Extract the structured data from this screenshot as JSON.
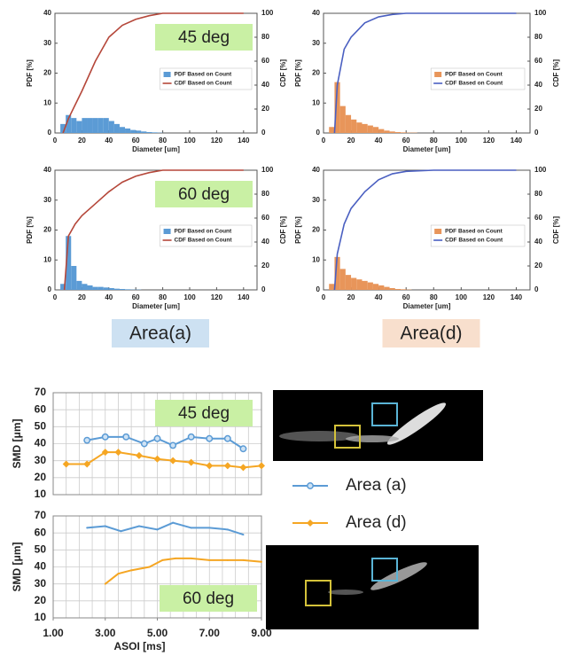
{
  "chart_data": [
    {
      "type": "histogram",
      "annotation": "45 deg",
      "xlabel": "Diameter [um]",
      "ylabel": "PDF [%]",
      "y2label": "CDF [%]",
      "bins": [
        4,
        8,
        12,
        16,
        20,
        24,
        28,
        32,
        36,
        40,
        44,
        48,
        52,
        56,
        60,
        64,
        68,
        72,
        76,
        80,
        84
      ],
      "series": [
        {
          "name": "PDF Based on Count",
          "color": "#5b9bd5",
          "values": [
            3,
            6,
            5,
            4,
            5,
            5,
            5,
            5,
            5,
            4,
            3,
            2,
            1.5,
            1,
            0.8,
            0.5,
            0.3,
            0.2,
            0.1,
            0
          ]
        },
        {
          "name": "CDF Based on Count",
          "color": "#b5473a",
          "axis": "y2",
          "x": [
            6,
            10,
            20,
            30,
            40,
            50,
            60,
            70,
            80,
            90,
            100,
            140
          ],
          "values": [
            0,
            12,
            35,
            60,
            80,
            90,
            95,
            98,
            100,
            100,
            100,
            100
          ]
        }
      ],
      "xlim": [
        0,
        150
      ],
      "xticks": [
        0,
        20,
        40,
        60,
        80,
        100,
        120,
        140
      ],
      "ylim": [
        0,
        40
      ],
      "yticks": [
        0,
        10,
        20,
        30,
        40
      ],
      "y2lim": [
        0,
        100
      ],
      "y2ticks": [
        0,
        20,
        40,
        60,
        80,
        100
      ]
    },
    {
      "type": "histogram",
      "xlabel": "Diameter [um]",
      "ylabel": "PDF [%]",
      "y2label": "CDF [%]",
      "bins": [
        4,
        8,
        12,
        16,
        20,
        24,
        28,
        32,
        36,
        40,
        44,
        48,
        52,
        56,
        60,
        64,
        68,
        72,
        76,
        80,
        84
      ],
      "series": [
        {
          "name": "PDF Based on Count",
          "color": "#e8955a",
          "values": [
            2,
            17,
            9,
            6,
            4.5,
            3.5,
            3,
            2.5,
            2,
            1.3,
            0.8,
            0.5,
            0.3,
            0.2,
            0.1,
            0.1,
            0,
            0,
            0,
            0
          ]
        },
        {
          "name": "CDF Based on Count",
          "color": "#4a5fc1",
          "axis": "y2",
          "x": [
            8,
            10,
            15,
            20,
            30,
            40,
            50,
            60,
            80,
            140
          ],
          "values": [
            0,
            40,
            70,
            80,
            92,
            97,
            99,
            100,
            100,
            100
          ]
        }
      ],
      "xlim": [
        0,
        150
      ],
      "xticks": [
        0,
        20,
        40,
        60,
        80,
        100,
        120,
        140
      ],
      "ylim": [
        0,
        40
      ],
      "yticks": [
        0,
        10,
        20,
        30,
        40
      ],
      "y2lim": [
        0,
        100
      ],
      "y2ticks": [
        0,
        20,
        40,
        60,
        80,
        100
      ]
    },
    {
      "type": "histogram",
      "annotation": "60 deg",
      "caption": "Area(a)",
      "xlabel": "Diameter [um]",
      "ylabel": "PDF [%]",
      "y2label": "CDF [%]",
      "bins": [
        4,
        8,
        12,
        16,
        20,
        24,
        28,
        32,
        36,
        40,
        44,
        48,
        52,
        56,
        60,
        64,
        68,
        72,
        76,
        80,
        84
      ],
      "series": [
        {
          "name": "PDF Based on Count",
          "color": "#5b9bd5",
          "values": [
            2,
            18,
            8,
            3,
            2,
            1.5,
            1,
            1,
            0.8,
            0.6,
            0.4,
            0.3,
            0.2,
            0.1,
            0.1,
            0,
            0,
            0,
            0,
            0
          ]
        },
        {
          "name": "CDF Based on Count",
          "color": "#b5473a",
          "axis": "y2",
          "x": [
            7,
            10,
            15,
            20,
            30,
            40,
            50,
            60,
            70,
            80,
            100,
            140
          ],
          "values": [
            0,
            45,
            55,
            62,
            72,
            82,
            90,
            95,
            98,
            100,
            100,
            100
          ]
        }
      ],
      "xlim": [
        0,
        150
      ],
      "xticks": [
        0,
        20,
        40,
        60,
        80,
        100,
        120,
        140
      ],
      "ylim": [
        0,
        40
      ],
      "yticks": [
        0,
        10,
        20,
        30,
        40
      ],
      "y2lim": [
        0,
        100
      ],
      "y2ticks": [
        0,
        20,
        40,
        60,
        80,
        100
      ]
    },
    {
      "type": "histogram",
      "caption": "Area(d)",
      "xlabel": "Diameter [um]",
      "ylabel": "PDF [%]",
      "y2label": "CDF [%]",
      "bins": [
        4,
        8,
        12,
        16,
        20,
        24,
        28,
        32,
        36,
        40,
        44,
        48,
        52,
        56,
        60,
        64,
        68,
        72,
        76,
        80,
        84
      ],
      "series": [
        {
          "name": "PDF Based on Count",
          "color": "#e8955a",
          "values": [
            2,
            11,
            7,
            5,
            4,
            3.5,
            3,
            2.5,
            2,
            1.5,
            1,
            0.6,
            0.3,
            0.2,
            0.1,
            0,
            0,
            0,
            0,
            0
          ]
        },
        {
          "name": "CDF Based on Count",
          "color": "#4a5fc1",
          "axis": "y2",
          "x": [
            8,
            10,
            15,
            20,
            30,
            40,
            50,
            60,
            80,
            140
          ],
          "values": [
            0,
            30,
            55,
            68,
            82,
            92,
            97,
            99,
            100,
            100
          ]
        }
      ],
      "xlim": [
        0,
        150
      ],
      "xticks": [
        0,
        20,
        40,
        60,
        80,
        100,
        120,
        140
      ],
      "ylim": [
        0,
        40
      ],
      "yticks": [
        0,
        10,
        20,
        30,
        40
      ],
      "y2lim": [
        0,
        100
      ],
      "y2ticks": [
        0,
        20,
        40,
        60,
        80,
        100
      ]
    },
    {
      "type": "line",
      "annotation": "45 deg",
      "ylabel": "SMD [μm]",
      "series": [
        {
          "name": "Area (a)",
          "color": "#5b9bd5",
          "marker": "circle",
          "x": [
            2.3,
            3.0,
            3.8,
            4.5,
            5.0,
            5.6,
            6.3,
            7.0,
            7.7,
            8.3
          ],
          "values": [
            42,
            44,
            44,
            40,
            43,
            39,
            44,
            43,
            43,
            37
          ]
        },
        {
          "name": "Area (d)",
          "color": "#f5a623",
          "marker": "diamond",
          "x": [
            1.5,
            2.3,
            3.0,
            3.5,
            4.3,
            5.0,
            5.6,
            6.3,
            7.0,
            7.7,
            8.3,
            9.0
          ],
          "values": [
            28,
            28,
            35,
            35,
            33,
            31,
            30,
            29,
            27,
            27,
            26,
            27
          ]
        }
      ],
      "xlim": [
        1,
        9
      ],
      "xgrid": [
        1,
        1.5,
        2,
        2.5,
        3,
        3.5,
        4,
        4.5,
        5,
        5.5,
        6,
        6.5,
        7,
        7.5,
        8,
        8.5,
        9
      ],
      "ylim": [
        10,
        70
      ],
      "yticks": [
        10,
        20,
        30,
        40,
        50,
        60,
        70
      ]
    },
    {
      "type": "line",
      "annotation": "60 deg",
      "ylabel": "SMD [μm]",
      "xlabel": "ASOI [ms]",
      "series": [
        {
          "color": "#5b9bd5",
          "marker": "circle",
          "x": [
            2.3,
            3.0,
            3.6,
            4.3,
            5.0,
            5.6,
            6.3,
            7.0,
            7.7,
            8.3
          ],
          "values": [
            63,
            64,
            61,
            64,
            62,
            66,
            63,
            63,
            62,
            59
          ]
        },
        {
          "color": "#f5a623",
          "marker": "diamond",
          "x": [
            3.0,
            3.5,
            4.0,
            4.7,
            5.2,
            5.7,
            6.3,
            7.0,
            7.7,
            8.3,
            9.0
          ],
          "values": [
            30,
            36,
            38,
            40,
            44,
            45,
            45,
            44,
            44,
            44,
            43
          ]
        }
      ],
      "xlim": [
        1,
        9
      ],
      "xgrid": [
        1,
        1.5,
        2,
        2.5,
        3,
        3.5,
        4,
        4.5,
        5,
        5.5,
        6,
        6.5,
        7,
        7.5,
        8,
        8.5,
        9
      ],
      "xticks": [
        {
          "value": 1,
          "label": "1.00"
        },
        {
          "value": 3,
          "label": "3.00"
        },
        {
          "value": 5,
          "label": "5.00"
        },
        {
          "value": 7,
          "label": "7.00"
        },
        {
          "value": 9,
          "label": "9.00"
        }
      ],
      "ylim": [
        10,
        70
      ],
      "yticks": [
        10,
        20,
        30,
        40,
        50,
        60,
        70
      ]
    }
  ]
}
